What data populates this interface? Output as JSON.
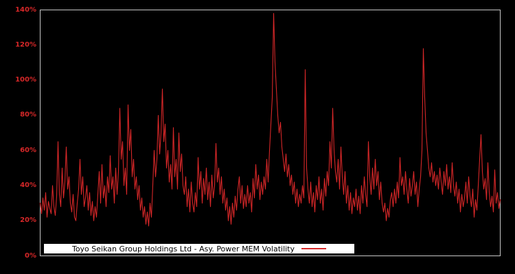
{
  "chart_data": {
    "type": "line",
    "legend_label": "Toyo Seikan Group Holdings Ltd - Asy. Power MEM Volatility",
    "legend_position": "bottom-center-inside",
    "grid": false,
    "background_color": "#000000",
    "line_color": "#d62728",
    "tick_label_color": "#d62728",
    "plot_border_color": "#c8c8c8",
    "legend_bg": "#ffffff",
    "legend_text_color": "#000000",
    "y_axis": {
      "unit": "%",
      "min": 0,
      "max": 140,
      "ticks": [
        "0%",
        "20%",
        "40%",
        "60%",
        "80%",
        "100%",
        "120%",
        "140%"
      ]
    },
    "x_axis": {
      "tick_labels": []
    },
    "values_percent": [
      30,
      24,
      33,
      26,
      36,
      22,
      31,
      27,
      24,
      40,
      28,
      23,
      34,
      65,
      35,
      28,
      50,
      33,
      42,
      62,
      38,
      45,
      30,
      25,
      35,
      22,
      20,
      30,
      38,
      55,
      35,
      45,
      28,
      33,
      40,
      26,
      36,
      23,
      31,
      20,
      28,
      22,
      35,
      48,
      30,
      52,
      33,
      40,
      28,
      45,
      36,
      57,
      38,
      45,
      30,
      50,
      35,
      48,
      84,
      55,
      65,
      40,
      50,
      35,
      86,
      60,
      72,
      45,
      55,
      38,
      45,
      32,
      40,
      26,
      33,
      22,
      28,
      18,
      25,
      17,
      30,
      22,
      40,
      60,
      45,
      55,
      80,
      58,
      70,
      95,
      65,
      75,
      50,
      60,
      42,
      52,
      38,
      73,
      45,
      55,
      38,
      70,
      48,
      58,
      40,
      35,
      45,
      28,
      38,
      25,
      42,
      30,
      25,
      36,
      28,
      56,
      38,
      48,
      30,
      44,
      35,
      50,
      32,
      42,
      28,
      46,
      33,
      40,
      64,
      42,
      50,
      35,
      45,
      30,
      38,
      26,
      33,
      20,
      28,
      18,
      30,
      22,
      34,
      26,
      38,
      45,
      30,
      40,
      27,
      35,
      28,
      40,
      30,
      36,
      25,
      44,
      33,
      52,
      38,
      46,
      32,
      42,
      35,
      45,
      38,
      55,
      42,
      60,
      75,
      90,
      138,
      110,
      95,
      80,
      70,
      76,
      62,
      55,
      48,
      58,
      45,
      52,
      40,
      46,
      35,
      42,
      30,
      38,
      28,
      35,
      30,
      40,
      33,
      106,
      50,
      38,
      30,
      42,
      28,
      36,
      25,
      40,
      32,
      45,
      30,
      38,
      26,
      44,
      34,
      48,
      40,
      65,
      50,
      84,
      60,
      48,
      42,
      55,
      38,
      62,
      45,
      35,
      48,
      30,
      40,
      26,
      36,
      24,
      33,
      28,
      38,
      26,
      34,
      24,
      40,
      30,
      45,
      35,
      28,
      65,
      45,
      35,
      50,
      38,
      55,
      40,
      48,
      32,
      42,
      30,
      25,
      30,
      20,
      27,
      22,
      32,
      36,
      28,
      38,
      30,
      42,
      33,
      56,
      40,
      45,
      35,
      48,
      38,
      30,
      44,
      34,
      40,
      48,
      35,
      42,
      28,
      38,
      45,
      60,
      118,
      90,
      70,
      60,
      50,
      45,
      53,
      42,
      48,
      40,
      46,
      38,
      50,
      42,
      35,
      48,
      40,
      52,
      38,
      45,
      36,
      53,
      40,
      34,
      42,
      30,
      38,
      25,
      35,
      28,
      33,
      42,
      30,
      45,
      34,
      28,
      38,
      22,
      32,
      26,
      40,
      55,
      69,
      48,
      38,
      44,
      32,
      53,
      36,
      28,
      34,
      25,
      49,
      30,
      36,
      27,
      32
    ]
  }
}
